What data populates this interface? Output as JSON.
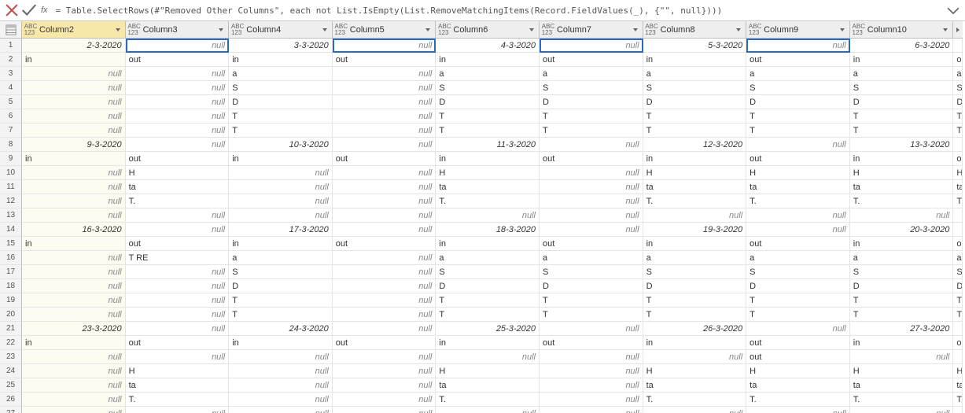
{
  "formula": "= Table.SelectRows(#\"Removed Other Columns\", each not List.IsEmpty(List.RemoveMatchingItems(Record.FieldValues(_), {\"\", null})))",
  "fx_label": "fx",
  "columns": [
    {
      "name": "Column2",
      "selected": true
    },
    {
      "name": "Column3",
      "selected": false
    },
    {
      "name": "Column4",
      "selected": false
    },
    {
      "name": "Column5",
      "selected": false
    },
    {
      "name": "Column6",
      "selected": false
    },
    {
      "name": "Column7",
      "selected": false
    },
    {
      "name": "Column8",
      "selected": false
    },
    {
      "name": "Column9",
      "selected": false
    },
    {
      "name": "Column10",
      "selected": false
    }
  ],
  "highlighted_cells": [
    [
      0,
      1
    ],
    [
      0,
      3
    ],
    [
      0,
      5
    ],
    [
      0,
      7
    ]
  ],
  "rows": [
    [
      {
        "v": "2-3-2020",
        "t": "date"
      },
      {
        "v": "null",
        "t": "null"
      },
      {
        "v": "3-3-2020",
        "t": "date"
      },
      {
        "v": "null",
        "t": "null"
      },
      {
        "v": "4-3-2020",
        "t": "date"
      },
      {
        "v": "null",
        "t": "null"
      },
      {
        "v": "5-3-2020",
        "t": "date"
      },
      {
        "v": "null",
        "t": "null"
      },
      {
        "v": "6-3-2020",
        "t": "date"
      }
    ],
    [
      {
        "v": "in",
        "t": "text"
      },
      {
        "v": "out",
        "t": "text"
      },
      {
        "v": "in",
        "t": "text"
      },
      {
        "v": "out",
        "t": "text"
      },
      {
        "v": "in",
        "t": "text"
      },
      {
        "v": "out",
        "t": "text"
      },
      {
        "v": "in",
        "t": "text"
      },
      {
        "v": "out",
        "t": "text"
      },
      {
        "v": "in",
        "t": "text"
      }
    ],
    [
      {
        "v": "null",
        "t": "null"
      },
      {
        "v": "null",
        "t": "null"
      },
      {
        "v": "a",
        "t": "text"
      },
      {
        "v": "null",
        "t": "null"
      },
      {
        "v": "a",
        "t": "text"
      },
      {
        "v": "a",
        "t": "text"
      },
      {
        "v": "a",
        "t": "text"
      },
      {
        "v": "a",
        "t": "text"
      },
      {
        "v": "a",
        "t": "text"
      }
    ],
    [
      {
        "v": "null",
        "t": "null"
      },
      {
        "v": "null",
        "t": "null"
      },
      {
        "v": "S",
        "t": "text"
      },
      {
        "v": "null",
        "t": "null"
      },
      {
        "v": "S",
        "t": "text"
      },
      {
        "v": "S",
        "t": "text"
      },
      {
        "v": "S",
        "t": "text"
      },
      {
        "v": "S",
        "t": "text"
      },
      {
        "v": "S",
        "t": "text"
      }
    ],
    [
      {
        "v": "null",
        "t": "null"
      },
      {
        "v": "null",
        "t": "null"
      },
      {
        "v": "D",
        "t": "text"
      },
      {
        "v": "null",
        "t": "null"
      },
      {
        "v": "D",
        "t": "text"
      },
      {
        "v": "D",
        "t": "text"
      },
      {
        "v": "D",
        "t": "text"
      },
      {
        "v": "D",
        "t": "text"
      },
      {
        "v": "D",
        "t": "text"
      }
    ],
    [
      {
        "v": "null",
        "t": "null"
      },
      {
        "v": "null",
        "t": "null"
      },
      {
        "v": "T",
        "t": "text"
      },
      {
        "v": "null",
        "t": "null"
      },
      {
        "v": "T",
        "t": "text"
      },
      {
        "v": "T",
        "t": "text"
      },
      {
        "v": "T",
        "t": "text"
      },
      {
        "v": "T",
        "t": "text"
      },
      {
        "v": "T",
        "t": "text"
      }
    ],
    [
      {
        "v": "null",
        "t": "null"
      },
      {
        "v": "null",
        "t": "null"
      },
      {
        "v": "T",
        "t": "text"
      },
      {
        "v": "null",
        "t": "null"
      },
      {
        "v": "T",
        "t": "text"
      },
      {
        "v": "T",
        "t": "text"
      },
      {
        "v": "T",
        "t": "text"
      },
      {
        "v": "T",
        "t": "text"
      },
      {
        "v": "T",
        "t": "text"
      }
    ],
    [
      {
        "v": "9-3-2020",
        "t": "date"
      },
      {
        "v": "null",
        "t": "null"
      },
      {
        "v": "10-3-2020",
        "t": "date"
      },
      {
        "v": "null",
        "t": "null"
      },
      {
        "v": "11-3-2020",
        "t": "date"
      },
      {
        "v": "null",
        "t": "null"
      },
      {
        "v": "12-3-2020",
        "t": "date"
      },
      {
        "v": "null",
        "t": "null"
      },
      {
        "v": "13-3-2020",
        "t": "date"
      }
    ],
    [
      {
        "v": "in",
        "t": "text"
      },
      {
        "v": "out",
        "t": "text"
      },
      {
        "v": "in",
        "t": "text"
      },
      {
        "v": "out",
        "t": "text"
      },
      {
        "v": "in",
        "t": "text"
      },
      {
        "v": "out",
        "t": "text"
      },
      {
        "v": "in",
        "t": "text"
      },
      {
        "v": "out",
        "t": "text"
      },
      {
        "v": "in",
        "t": "text"
      }
    ],
    [
      {
        "v": "null",
        "t": "null"
      },
      {
        "v": "H",
        "t": "text"
      },
      {
        "v": "null",
        "t": "null"
      },
      {
        "v": "null",
        "t": "null"
      },
      {
        "v": "H",
        "t": "text"
      },
      {
        "v": "null",
        "t": "null"
      },
      {
        "v": "H",
        "t": "text"
      },
      {
        "v": "H",
        "t": "text"
      },
      {
        "v": "H",
        "t": "text"
      }
    ],
    [
      {
        "v": "null",
        "t": "null"
      },
      {
        "v": "ta",
        "t": "text"
      },
      {
        "v": "null",
        "t": "null"
      },
      {
        "v": "null",
        "t": "null"
      },
      {
        "v": "ta",
        "t": "text"
      },
      {
        "v": "null",
        "t": "null"
      },
      {
        "v": "ta",
        "t": "text"
      },
      {
        "v": "ta",
        "t": "text"
      },
      {
        "v": "ta",
        "t": "text"
      }
    ],
    [
      {
        "v": "null",
        "t": "null"
      },
      {
        "v": "T.",
        "t": "text"
      },
      {
        "v": "null",
        "t": "null"
      },
      {
        "v": "null",
        "t": "null"
      },
      {
        "v": "T.",
        "t": "text"
      },
      {
        "v": "null",
        "t": "null"
      },
      {
        "v": "T.",
        "t": "text"
      },
      {
        "v": "T.",
        "t": "text"
      },
      {
        "v": "T.",
        "t": "text"
      }
    ],
    [
      {
        "v": "null",
        "t": "null"
      },
      {
        "v": "null",
        "t": "null"
      },
      {
        "v": "null",
        "t": "null"
      },
      {
        "v": "null",
        "t": "null"
      },
      {
        "v": "null",
        "t": "null"
      },
      {
        "v": "null",
        "t": "null"
      },
      {
        "v": "null",
        "t": "null"
      },
      {
        "v": "null",
        "t": "null"
      },
      {
        "v": "null",
        "t": "null"
      }
    ],
    [
      {
        "v": "16-3-2020",
        "t": "date"
      },
      {
        "v": "null",
        "t": "null"
      },
      {
        "v": "17-3-2020",
        "t": "date"
      },
      {
        "v": "null",
        "t": "null"
      },
      {
        "v": "18-3-2020",
        "t": "date"
      },
      {
        "v": "null",
        "t": "null"
      },
      {
        "v": "19-3-2020",
        "t": "date"
      },
      {
        "v": "null",
        "t": "null"
      },
      {
        "v": "20-3-2020",
        "t": "date"
      }
    ],
    [
      {
        "v": "in",
        "t": "text"
      },
      {
        "v": "out",
        "t": "text"
      },
      {
        "v": "in",
        "t": "text"
      },
      {
        "v": "out",
        "t": "text"
      },
      {
        "v": "in",
        "t": "text"
      },
      {
        "v": "out",
        "t": "text"
      },
      {
        "v": "in",
        "t": "text"
      },
      {
        "v": "out",
        "t": "text"
      },
      {
        "v": "in",
        "t": "text"
      }
    ],
    [
      {
        "v": "null",
        "t": "null"
      },
      {
        "v": "T RE",
        "t": "text"
      },
      {
        "v": "a",
        "t": "text"
      },
      {
        "v": "null",
        "t": "null"
      },
      {
        "v": "a",
        "t": "text"
      },
      {
        "v": "a",
        "t": "text"
      },
      {
        "v": "a",
        "t": "text"
      },
      {
        "v": "a",
        "t": "text"
      },
      {
        "v": "a",
        "t": "text"
      }
    ],
    [
      {
        "v": "null",
        "t": "null"
      },
      {
        "v": "null",
        "t": "null"
      },
      {
        "v": "S",
        "t": "text"
      },
      {
        "v": "null",
        "t": "null"
      },
      {
        "v": "S",
        "t": "text"
      },
      {
        "v": "S",
        "t": "text"
      },
      {
        "v": "S",
        "t": "text"
      },
      {
        "v": "S",
        "t": "text"
      },
      {
        "v": "S",
        "t": "text"
      }
    ],
    [
      {
        "v": "null",
        "t": "null"
      },
      {
        "v": "null",
        "t": "null"
      },
      {
        "v": "D",
        "t": "text"
      },
      {
        "v": "null",
        "t": "null"
      },
      {
        "v": "D",
        "t": "text"
      },
      {
        "v": "D",
        "t": "text"
      },
      {
        "v": "D",
        "t": "text"
      },
      {
        "v": "D",
        "t": "text"
      },
      {
        "v": "D",
        "t": "text"
      }
    ],
    [
      {
        "v": "null",
        "t": "null"
      },
      {
        "v": "null",
        "t": "null"
      },
      {
        "v": "T",
        "t": "text"
      },
      {
        "v": "null",
        "t": "null"
      },
      {
        "v": "T",
        "t": "text"
      },
      {
        "v": "T",
        "t": "text"
      },
      {
        "v": "T",
        "t": "text"
      },
      {
        "v": "T",
        "t": "text"
      },
      {
        "v": "T",
        "t": "text"
      }
    ],
    [
      {
        "v": "null",
        "t": "null"
      },
      {
        "v": "null",
        "t": "null"
      },
      {
        "v": "T",
        "t": "text"
      },
      {
        "v": "null",
        "t": "null"
      },
      {
        "v": "T",
        "t": "text"
      },
      {
        "v": "T",
        "t": "text"
      },
      {
        "v": "T",
        "t": "text"
      },
      {
        "v": "T",
        "t": "text"
      },
      {
        "v": "T",
        "t": "text"
      }
    ],
    [
      {
        "v": "23-3-2020",
        "t": "date"
      },
      {
        "v": "null",
        "t": "null"
      },
      {
        "v": "24-3-2020",
        "t": "date"
      },
      {
        "v": "null",
        "t": "null"
      },
      {
        "v": "25-3-2020",
        "t": "date"
      },
      {
        "v": "null",
        "t": "null"
      },
      {
        "v": "26-3-2020",
        "t": "date"
      },
      {
        "v": "null",
        "t": "null"
      },
      {
        "v": "27-3-2020",
        "t": "date"
      }
    ],
    [
      {
        "v": "in",
        "t": "text"
      },
      {
        "v": "out",
        "t": "text"
      },
      {
        "v": "in",
        "t": "text"
      },
      {
        "v": "out",
        "t": "text"
      },
      {
        "v": "in",
        "t": "text"
      },
      {
        "v": "out",
        "t": "text"
      },
      {
        "v": "in",
        "t": "text"
      },
      {
        "v": "out",
        "t": "text"
      },
      {
        "v": "in",
        "t": "text"
      }
    ],
    [
      {
        "v": "null",
        "t": "null"
      },
      {
        "v": "null",
        "t": "null"
      },
      {
        "v": "null",
        "t": "null"
      },
      {
        "v": "null",
        "t": "null"
      },
      {
        "v": "null",
        "t": "null"
      },
      {
        "v": "null",
        "t": "null"
      },
      {
        "v": "null",
        "t": "null"
      },
      {
        "v": "out",
        "t": "text"
      },
      {
        "v": "null",
        "t": "null"
      }
    ],
    [
      {
        "v": "null",
        "t": "null"
      },
      {
        "v": "H",
        "t": "text"
      },
      {
        "v": "null",
        "t": "null"
      },
      {
        "v": "null",
        "t": "null"
      },
      {
        "v": "H",
        "t": "text"
      },
      {
        "v": "null",
        "t": "null"
      },
      {
        "v": "H",
        "t": "text"
      },
      {
        "v": "H",
        "t": "text"
      },
      {
        "v": "H",
        "t": "text"
      }
    ],
    [
      {
        "v": "null",
        "t": "null"
      },
      {
        "v": "ta",
        "t": "text"
      },
      {
        "v": "null",
        "t": "null"
      },
      {
        "v": "null",
        "t": "null"
      },
      {
        "v": "ta",
        "t": "text"
      },
      {
        "v": "null",
        "t": "null"
      },
      {
        "v": "ta",
        "t": "text"
      },
      {
        "v": "ta",
        "t": "text"
      },
      {
        "v": "ta",
        "t": "text"
      }
    ],
    [
      {
        "v": "null",
        "t": "null"
      },
      {
        "v": "T.",
        "t": "text"
      },
      {
        "v": "null",
        "t": "null"
      },
      {
        "v": "null",
        "t": "null"
      },
      {
        "v": "T.",
        "t": "text"
      },
      {
        "v": "null",
        "t": "null"
      },
      {
        "v": "T.",
        "t": "text"
      },
      {
        "v": "T.",
        "t": "text"
      },
      {
        "v": "T.",
        "t": "text"
      }
    ],
    [
      {
        "v": "null",
        "t": "null"
      },
      {
        "v": "null",
        "t": "null"
      },
      {
        "v": "null",
        "t": "null"
      },
      {
        "v": "null",
        "t": "null"
      },
      {
        "v": "null",
        "t": "null"
      },
      {
        "v": "null",
        "t": "null"
      },
      {
        "v": "null",
        "t": "null"
      },
      {
        "v": "null",
        "t": "null"
      },
      {
        "v": "null",
        "t": "null"
      }
    ]
  ],
  "trailing_col": [
    "",
    "o",
    "a",
    "S",
    "D",
    "T",
    "T",
    "",
    "o",
    "H",
    "ta",
    "T.",
    "",
    "",
    "o",
    "a",
    "S",
    "D",
    "T",
    "T",
    "",
    "o",
    "",
    "H",
    "ta",
    "T.",
    ""
  ]
}
